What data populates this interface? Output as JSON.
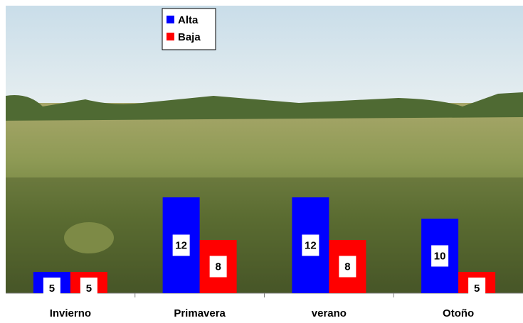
{
  "chart_data": {
    "type": "bar",
    "categories": [
      "Invierno",
      "Primavera",
      "verano",
      "Otoño"
    ],
    "series": [
      {
        "name": "Alta",
        "color": "#0000ff",
        "values": [
          5,
          12,
          12,
          10
        ]
      },
      {
        "name": "Baja",
        "color": "#ff0000",
        "values": [
          5,
          8,
          8,
          5
        ]
      }
    ],
    "ylim": [
      3,
      30
    ]
  }
}
